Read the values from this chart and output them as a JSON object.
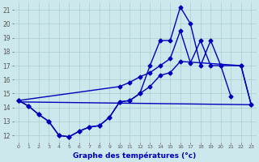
{
  "bg_color": "#cce8ec",
  "grid_color": "#aacccc",
  "line_color": "#0000bb",
  "xlabel": "Graphe des températures (°c)",
  "xlabel_color": "#0000bb",
  "ylim": [
    11.5,
    21.5
  ],
  "xlim": [
    -0.5,
    23.5
  ],
  "ytick_labels": [
    "12",
    "13",
    "14",
    "15",
    "16",
    "17",
    "18",
    "19",
    "20",
    "21"
  ],
  "ytick_vals": [
    12,
    13,
    14,
    15,
    16,
    17,
    18,
    19,
    20,
    21
  ],
  "xtick_vals": [
    0,
    1,
    2,
    3,
    4,
    5,
    6,
    7,
    8,
    9,
    10,
    11,
    12,
    13,
    14,
    15,
    16,
    17,
    18,
    19,
    20,
    21,
    22,
    23
  ],
  "lw": 1.0,
  "ms": 2.5,
  "line1_x": [
    0,
    1,
    2,
    3,
    4,
    5,
    6,
    7,
    8,
    9,
    10,
    11,
    12,
    13,
    14,
    15,
    16,
    17,
    18,
    19,
    20,
    21
  ],
  "line1_y": [
    14.5,
    14.1,
    13.5,
    13.0,
    12.0,
    11.9,
    12.3,
    12.6,
    12.7,
    13.3,
    14.4,
    14.5,
    15.0,
    17.0,
    18.8,
    18.8,
    21.2,
    20.0,
    17.0,
    18.8,
    17.0,
    14.8
  ],
  "line2_x": [
    0,
    10,
    11,
    12,
    13,
    14,
    15,
    16,
    17,
    18,
    19,
    20,
    22,
    23
  ],
  "line2_y": [
    14.5,
    15.5,
    15.8,
    16.2,
    16.5,
    17.0,
    17.5,
    19.5,
    17.2,
    18.8,
    17.0,
    17.0,
    17.0,
    14.2
  ],
  "line3_x": [
    0,
    1,
    2,
    3,
    4,
    5,
    6,
    7,
    8,
    9,
    10,
    11,
    12,
    13,
    14,
    15,
    16,
    22,
    23
  ],
  "line3_y": [
    14.5,
    14.1,
    13.5,
    13.0,
    12.0,
    11.9,
    12.3,
    12.6,
    12.7,
    13.3,
    14.4,
    14.5,
    15.0,
    15.5,
    16.3,
    16.5,
    17.3,
    17.0,
    14.2
  ],
  "line4_x": [
    0,
    23
  ],
  "line4_y": [
    14.4,
    14.2
  ]
}
